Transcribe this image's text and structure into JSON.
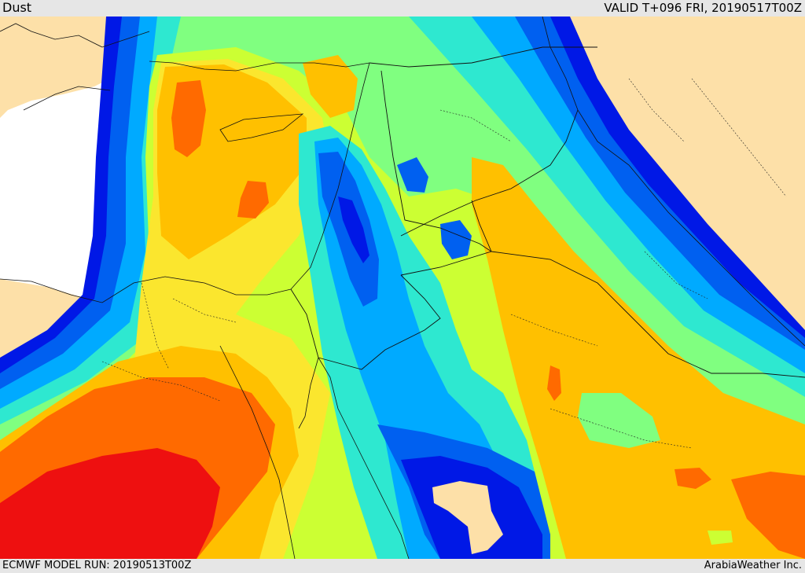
{
  "header": {
    "title": "Dust",
    "valid": "VALID T+096 FRI, 20190517T00Z"
  },
  "footer": {
    "model_run": "ECMWF MODEL RUN: 20190513T00Z",
    "brand": "ArabiaWeather Inc."
  },
  "colors": {
    "sea": "#ffffff",
    "land": "#fde0a8",
    "level_1_darkblue": "#0018e6",
    "level_2_blue": "#0060f0",
    "level_3_skyblue": "#00aaff",
    "level_4_cyan": "#2ee8d0",
    "level_5_green": "#80ff80",
    "level_6_yellowgreen": "#ccff33",
    "level_7_yellow": "#fbe62e",
    "level_8_orange": "#ffc000",
    "level_9_darkorange": "#ff6a00",
    "level_10_red": "#ee1010"
  }
}
